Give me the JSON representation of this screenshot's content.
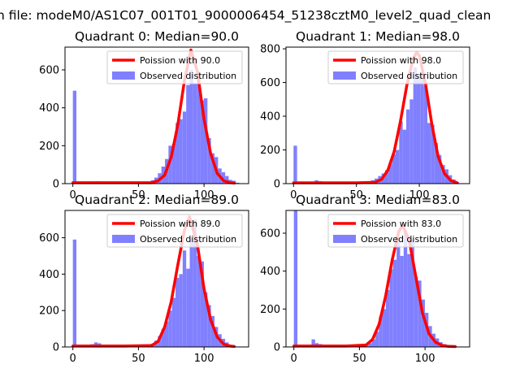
{
  "figure": {
    "suptitle": "n file: modeM0/AS1C07_001T01_9000006454_51238cztM0_level2_quad_clean"
  },
  "colors": {
    "bar": "#8080ff",
    "line": "#ff0000",
    "legend_border": "#cccccc"
  },
  "chart_data": [
    {
      "type": "bar",
      "title": "Quadrant 0: Median=90.0",
      "xlim": [
        -6,
        134
      ],
      "ylim": [
        0,
        720
      ],
      "xticks": [
        0,
        50,
        100
      ],
      "xtick_labels": [
        "0",
        "50",
        "100"
      ],
      "yticks": [
        0,
        200,
        400,
        600
      ],
      "ytick_labels": [
        "0",
        "200",
        "400",
        "600"
      ],
      "legend_position": "upper right",
      "bin_width": 2.7,
      "bars": [
        {
          "x": 0,
          "value": 490
        },
        {
          "x": 2.7,
          "value": 5
        },
        {
          "x": 5.4,
          "value": 5
        },
        {
          "x": 8.1,
          "value": 8
        },
        {
          "x": 10.8,
          "value": 8
        },
        {
          "x": 13.5,
          "value": 10
        },
        {
          "x": 16.2,
          "value": 12
        },
        {
          "x": 18.9,
          "value": 12
        },
        {
          "x": 21.6,
          "value": 10
        },
        {
          "x": 24.3,
          "value": 8
        },
        {
          "x": 27,
          "value": 6
        },
        {
          "x": 29.7,
          "value": 5
        },
        {
          "x": 32.4,
          "value": 5
        },
        {
          "x": 35.1,
          "value": 4
        },
        {
          "x": 37.8,
          "value": 4
        },
        {
          "x": 40.5,
          "value": 4
        },
        {
          "x": 43.2,
          "value": 5
        },
        {
          "x": 45.9,
          "value": 5
        },
        {
          "x": 48.6,
          "value": 5
        },
        {
          "x": 51.3,
          "value": 6
        },
        {
          "x": 54,
          "value": 8
        },
        {
          "x": 56.7,
          "value": 10
        },
        {
          "x": 59.4,
          "value": 18
        },
        {
          "x": 62.1,
          "value": 32
        },
        {
          "x": 64.8,
          "value": 55
        },
        {
          "x": 67.5,
          "value": 90
        },
        {
          "x": 70.2,
          "value": 130
        },
        {
          "x": 72.9,
          "value": 200
        },
        {
          "x": 75.6,
          "value": 210
        },
        {
          "x": 78.3,
          "value": 320
        },
        {
          "x": 81,
          "value": 340
        },
        {
          "x": 83.7,
          "value": 380
        },
        {
          "x": 86.4,
          "value": 520
        },
        {
          "x": 89.1,
          "value": 600
        },
        {
          "x": 91.8,
          "value": 530
        },
        {
          "x": 94.5,
          "value": 590
        },
        {
          "x": 97.2,
          "value": 440
        },
        {
          "x": 99.9,
          "value": 450
        },
        {
          "x": 102.6,
          "value": 240
        },
        {
          "x": 105.3,
          "value": 160
        },
        {
          "x": 108,
          "value": 140
        },
        {
          "x": 110.7,
          "value": 80
        },
        {
          "x": 113.4,
          "value": 60
        },
        {
          "x": 116.1,
          "value": 40
        },
        {
          "x": 118.8,
          "value": 20
        },
        {
          "x": 121.5,
          "value": 15
        },
        {
          "x": 124.2,
          "value": 5
        }
      ],
      "series": [
        {
          "name": "Poission with 90.0",
          "kind": "line",
          "mean": 90.0,
          "peak": 705,
          "x": [
            0,
            40,
            60,
            65,
            70,
            75,
            80,
            85,
            90,
            95,
            100,
            105,
            110,
            115,
            120,
            123
          ],
          "values": [
            5,
            5,
            5,
            15,
            45,
            140,
            310,
            540,
            705,
            590,
            340,
            160,
            55,
            15,
            5,
            3
          ]
        },
        {
          "name": "Observed distribution",
          "kind": "bar"
        }
      ]
    },
    {
      "type": "bar",
      "title": "Quadrant 1: Median=98.0",
      "xlim": [
        -6,
        140
      ],
      "ylim": [
        0,
        810
      ],
      "xticks": [
        0,
        50,
        100
      ],
      "xtick_labels": [
        "0",
        "50",
        "100"
      ],
      "yticks": [
        0,
        200,
        400,
        600,
        800
      ],
      "ytick_labels": [
        "0",
        "200",
        "400",
        "600",
        "800"
      ],
      "legend_position": "upper right",
      "bin_width": 2.8,
      "bars": [
        {
          "x": 0,
          "value": 225
        },
        {
          "x": 2.8,
          "value": 5
        },
        {
          "x": 5.6,
          "value": 5
        },
        {
          "x": 8.4,
          "value": 5
        },
        {
          "x": 11.2,
          "value": 8
        },
        {
          "x": 14,
          "value": 10
        },
        {
          "x": 16.8,
          "value": 20
        },
        {
          "x": 19.6,
          "value": 15
        },
        {
          "x": 22.4,
          "value": 10
        },
        {
          "x": 25.2,
          "value": 8
        },
        {
          "x": 28,
          "value": 6
        },
        {
          "x": 30.8,
          "value": 5
        },
        {
          "x": 33.6,
          "value": 5
        },
        {
          "x": 36.4,
          "value": 5
        },
        {
          "x": 39.2,
          "value": 5
        },
        {
          "x": 42,
          "value": 5
        },
        {
          "x": 44.8,
          "value": 5
        },
        {
          "x": 47.6,
          "value": 6
        },
        {
          "x": 50.4,
          "value": 6
        },
        {
          "x": 53.2,
          "value": 8
        },
        {
          "x": 56,
          "value": 10
        },
        {
          "x": 58.8,
          "value": 12
        },
        {
          "x": 61.6,
          "value": 20
        },
        {
          "x": 64.4,
          "value": 30
        },
        {
          "x": 67.2,
          "value": 45
        },
        {
          "x": 70,
          "value": 60
        },
        {
          "x": 72.8,
          "value": 80
        },
        {
          "x": 75.6,
          "value": 120
        },
        {
          "x": 78.4,
          "value": 175
        },
        {
          "x": 81.2,
          "value": 200
        },
        {
          "x": 84,
          "value": 370
        },
        {
          "x": 86.8,
          "value": 320
        },
        {
          "x": 89.6,
          "value": 440
        },
        {
          "x": 92.4,
          "value": 500
        },
        {
          "x": 95.2,
          "value": 690
        },
        {
          "x": 98,
          "value": 650
        },
        {
          "x": 100.8,
          "value": 660
        },
        {
          "x": 103.6,
          "value": 580
        },
        {
          "x": 106.4,
          "value": 360
        },
        {
          "x": 109.2,
          "value": 350
        },
        {
          "x": 112,
          "value": 240
        },
        {
          "x": 114.8,
          "value": 170
        },
        {
          "x": 117.6,
          "value": 110
        },
        {
          "x": 120.4,
          "value": 85
        },
        {
          "x": 123.2,
          "value": 50
        },
        {
          "x": 126,
          "value": 25
        },
        {
          "x": 128.8,
          "value": 10
        }
      ],
      "series": [
        {
          "name": "Poission with 98.0",
          "kind": "line",
          "mean": 98.0,
          "peak": 780,
          "x": [
            0,
            50,
            65,
            70,
            75,
            80,
            85,
            90,
            95,
            98,
            100,
            105,
            110,
            115,
            120,
            125,
            130
          ],
          "values": [
            5,
            5,
            8,
            25,
            80,
            190,
            370,
            580,
            740,
            780,
            760,
            590,
            350,
            160,
            60,
            18,
            5
          ]
        },
        {
          "name": "Observed distribution",
          "kind": "bar"
        }
      ]
    },
    {
      "type": "bar",
      "title": "Quadrant 2: Median=89.0",
      "xlim": [
        -6,
        134
      ],
      "ylim": [
        0,
        750
      ],
      "xticks": [
        0,
        50,
        100
      ],
      "xtick_labels": [
        "0",
        "50",
        "100"
      ],
      "yticks": [
        0,
        200,
        400,
        600
      ],
      "ytick_labels": [
        "0",
        "200",
        "400",
        "600"
      ],
      "legend_position": "upper right",
      "bin_width": 2.7,
      "bars": [
        {
          "x": 0,
          "value": 590
        },
        {
          "x": 2.7,
          "value": 5
        },
        {
          "x": 5.4,
          "value": 5
        },
        {
          "x": 8.1,
          "value": 5
        },
        {
          "x": 10.8,
          "value": 10
        },
        {
          "x": 13.5,
          "value": 15
        },
        {
          "x": 16.2,
          "value": 25
        },
        {
          "x": 18.9,
          "value": 20
        },
        {
          "x": 21.6,
          "value": 10
        },
        {
          "x": 24.3,
          "value": 8
        },
        {
          "x": 27,
          "value": 6
        },
        {
          "x": 29.7,
          "value": 5
        },
        {
          "x": 32.4,
          "value": 5
        },
        {
          "x": 35.1,
          "value": 4
        },
        {
          "x": 37.8,
          "value": 4
        },
        {
          "x": 40.5,
          "value": 4
        },
        {
          "x": 43.2,
          "value": 5
        },
        {
          "x": 45.9,
          "value": 5
        },
        {
          "x": 48.6,
          "value": 5
        },
        {
          "x": 51.3,
          "value": 6
        },
        {
          "x": 54,
          "value": 6
        },
        {
          "x": 56.7,
          "value": 8
        },
        {
          "x": 59.4,
          "value": 18
        },
        {
          "x": 62.1,
          "value": 35
        },
        {
          "x": 64.8,
          "value": 60
        },
        {
          "x": 67.5,
          "value": 100
        },
        {
          "x": 70.2,
          "value": 140
        },
        {
          "x": 72.9,
          "value": 200
        },
        {
          "x": 75.6,
          "value": 270
        },
        {
          "x": 78.3,
          "value": 380
        },
        {
          "x": 81,
          "value": 400
        },
        {
          "x": 83.7,
          "value": 530
        },
        {
          "x": 86.4,
          "value": 430
        },
        {
          "x": 89.1,
          "value": 600
        },
        {
          "x": 91.8,
          "value": 700
        },
        {
          "x": 94.5,
          "value": 500
        },
        {
          "x": 97.2,
          "value": 470
        },
        {
          "x": 99.9,
          "value": 300
        },
        {
          "x": 102.6,
          "value": 230
        },
        {
          "x": 105.3,
          "value": 170
        },
        {
          "x": 108,
          "value": 110
        },
        {
          "x": 110.7,
          "value": 70
        },
        {
          "x": 113.4,
          "value": 45
        },
        {
          "x": 116.1,
          "value": 25
        },
        {
          "x": 118.8,
          "value": 10
        },
        {
          "x": 121.5,
          "value": 5
        }
      ],
      "series": [
        {
          "name": "Poission with 89.0",
          "kind": "line",
          "mean": 89.0,
          "peak": 715,
          "x": [
            0,
            40,
            60,
            65,
            70,
            75,
            80,
            85,
            89,
            95,
            100,
            105,
            110,
            115,
            120,
            123
          ],
          "values": [
            5,
            5,
            8,
            30,
            110,
            250,
            450,
            640,
            715,
            560,
            320,
            150,
            55,
            15,
            5,
            3
          ]
        },
        {
          "name": "Observed distribution",
          "kind": "bar"
        }
      ]
    },
    {
      "type": "bar",
      "title": "Quadrant 3: Median=83.0",
      "xlim": [
        -6,
        134
      ],
      "ylim": [
        0,
        720
      ],
      "xticks": [
        0,
        50,
        100
      ],
      "xtick_labels": [
        "0",
        "50",
        "100"
      ],
      "yticks": [
        0,
        200,
        400,
        600
      ],
      "ytick_labels": [
        "0",
        "200",
        "400",
        "600"
      ],
      "legend_position": "upper right",
      "bin_width": 2.7,
      "bars": [
        {
          "x": 0,
          "value": 720
        },
        {
          "x": 2.7,
          "value": 5
        },
        {
          "x": 5.4,
          "value": 5
        },
        {
          "x": 8.1,
          "value": 5
        },
        {
          "x": 10.8,
          "value": 10
        },
        {
          "x": 13.5,
          "value": 40
        },
        {
          "x": 16.2,
          "value": 20
        },
        {
          "x": 18.9,
          "value": 15
        },
        {
          "x": 21.6,
          "value": 10
        },
        {
          "x": 24.3,
          "value": 8
        },
        {
          "x": 27,
          "value": 6
        },
        {
          "x": 29.7,
          "value": 5
        },
        {
          "x": 32.4,
          "value": 5
        },
        {
          "x": 35.1,
          "value": 4
        },
        {
          "x": 37.8,
          "value": 4
        },
        {
          "x": 40.5,
          "value": 4
        },
        {
          "x": 43.2,
          "value": 5
        },
        {
          "x": 45.9,
          "value": 5
        },
        {
          "x": 48.6,
          "value": 6
        },
        {
          "x": 51.3,
          "value": 8
        },
        {
          "x": 54,
          "value": 10
        },
        {
          "x": 56.7,
          "value": 20
        },
        {
          "x": 59.4,
          "value": 40
        },
        {
          "x": 62.1,
          "value": 80
        },
        {
          "x": 64.8,
          "value": 160
        },
        {
          "x": 67.5,
          "value": 200
        },
        {
          "x": 70.2,
          "value": 300
        },
        {
          "x": 72.9,
          "value": 410
        },
        {
          "x": 75.6,
          "value": 460
        },
        {
          "x": 78.3,
          "value": 560
        },
        {
          "x": 81,
          "value": 480
        },
        {
          "x": 83.7,
          "value": 610
        },
        {
          "x": 86.4,
          "value": 490
        },
        {
          "x": 89.1,
          "value": 570
        },
        {
          "x": 91.8,
          "value": 370
        },
        {
          "x": 94.5,
          "value": 350
        },
        {
          "x": 97.2,
          "value": 250
        },
        {
          "x": 99.9,
          "value": 180
        },
        {
          "x": 102.6,
          "value": 110
        },
        {
          "x": 105.3,
          "value": 70
        },
        {
          "x": 108,
          "value": 45
        },
        {
          "x": 110.7,
          "value": 25
        },
        {
          "x": 113.4,
          "value": 15
        },
        {
          "x": 116.1,
          "value": 5
        }
      ],
      "series": [
        {
          "name": "Poission with 83.0",
          "kind": "line",
          "mean": 83.0,
          "peak": 640,
          "x": [
            0,
            40,
            55,
            60,
            65,
            70,
            75,
            80,
            83,
            88,
            93,
            98,
            103,
            108,
            113,
            118,
            123
          ],
          "values": [
            5,
            5,
            10,
            40,
            120,
            270,
            460,
            610,
            640,
            560,
            370,
            180,
            70,
            25,
            8,
            3,
            2
          ]
        },
        {
          "name": "Observed distribution",
          "kind": "bar"
        }
      ]
    }
  ]
}
